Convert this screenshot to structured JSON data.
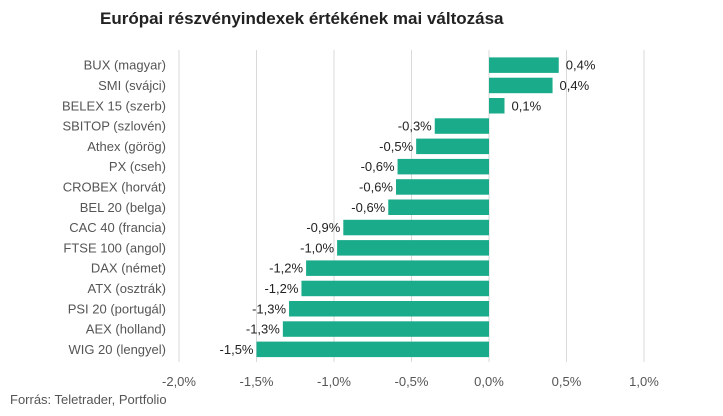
{
  "title": "Európai részvényindexek értékének mai változása",
  "source": "Forrás: Teletrader, Portfolio",
  "chart_data": {
    "type": "bar",
    "orientation": "horizontal",
    "title": "Európai részvényindexek értékének mai változása",
    "categories": [
      "BUX (magyar)",
      "SMI (svájci)",
      "BELEX 15 (szerb)",
      "SBITOP (szlovén)",
      "Athex (görög)",
      "PX (cseh)",
      "CROBEX (horvát)",
      "BEL 20 (belga)",
      "CAC 40 (francia)",
      "FTSE 100 (angol)",
      "DAX (német)",
      "ATX (osztrák)",
      "PSI 20 (portugál)",
      "AEX (holland)",
      "WIG 20 (lengyel)"
    ],
    "values": [
      0.45,
      0.41,
      0.1,
      -0.35,
      -0.47,
      -0.59,
      -0.6,
      -0.65,
      -0.94,
      -0.98,
      -1.18,
      -1.21,
      -1.29,
      -1.33,
      -1.5
    ],
    "value_labels": [
      "0,4%",
      "0,4%",
      "0,1%",
      "-0,3%",
      "-0,5%",
      "-0,6%",
      "-0,6%",
      "-0,6%",
      "-0,9%",
      "-1,0%",
      "-1,2%",
      "-1,2%",
      "-1,3%",
      "-1,3%",
      "-1,5%"
    ],
    "xlim": [
      -2.0,
      1.0
    ],
    "x_ticks": [
      -2.0,
      -1.5,
      -1.0,
      -0.5,
      0.0,
      0.5,
      1.0
    ],
    "x_tick_labels": [
      "-2,0%",
      "-1,5%",
      "-1,0%",
      "-0,5%",
      "0,0%",
      "0,5%",
      "1,0%"
    ],
    "grid": "vertical",
    "legend": "none",
    "bar_color": "#1aab8a",
    "grid_color": "#d9d9d9"
  }
}
